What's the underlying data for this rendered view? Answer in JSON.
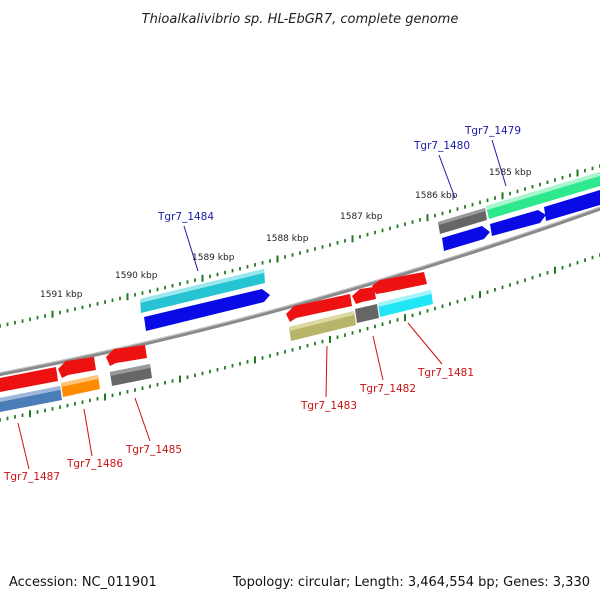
{
  "title": "Thioalkalivibrio sp. HL-EbGR7, complete genome",
  "footer": {
    "accession": "Accession: NC_011901",
    "summary": "Topology: circular; Length: 3,464,554 bp; Genes: 3,330"
  },
  "scale": {
    "unit": "kbp",
    "labels": [
      "1591 kbp",
      "1590 kbp",
      "1589 kbp",
      "1588 kbp",
      "1587 kbp",
      "1586 kbp",
      "1585 kbp"
    ]
  },
  "colors": {
    "forward_label": "#1a1aaa",
    "reverse_label": "#cc1111",
    "tick": "#1f7a1f",
    "backbone": "#8a8a8a"
  },
  "genes": [
    {
      "label": "Tgr7_1479",
      "strand": "forward"
    },
    {
      "label": "Tgr7_1480",
      "strand": "forward"
    },
    {
      "label": "Tgr7_1484",
      "strand": "forward"
    },
    {
      "label": "Tgr7_1481",
      "strand": "reverse"
    },
    {
      "label": "Tgr7_1482",
      "strand": "reverse"
    },
    {
      "label": "Tgr7_1483",
      "strand": "reverse"
    },
    {
      "label": "Tgr7_1485",
      "strand": "reverse"
    },
    {
      "label": "Tgr7_1486",
      "strand": "reverse"
    },
    {
      "label": "Tgr7_1487",
      "strand": "reverse"
    }
  ]
}
